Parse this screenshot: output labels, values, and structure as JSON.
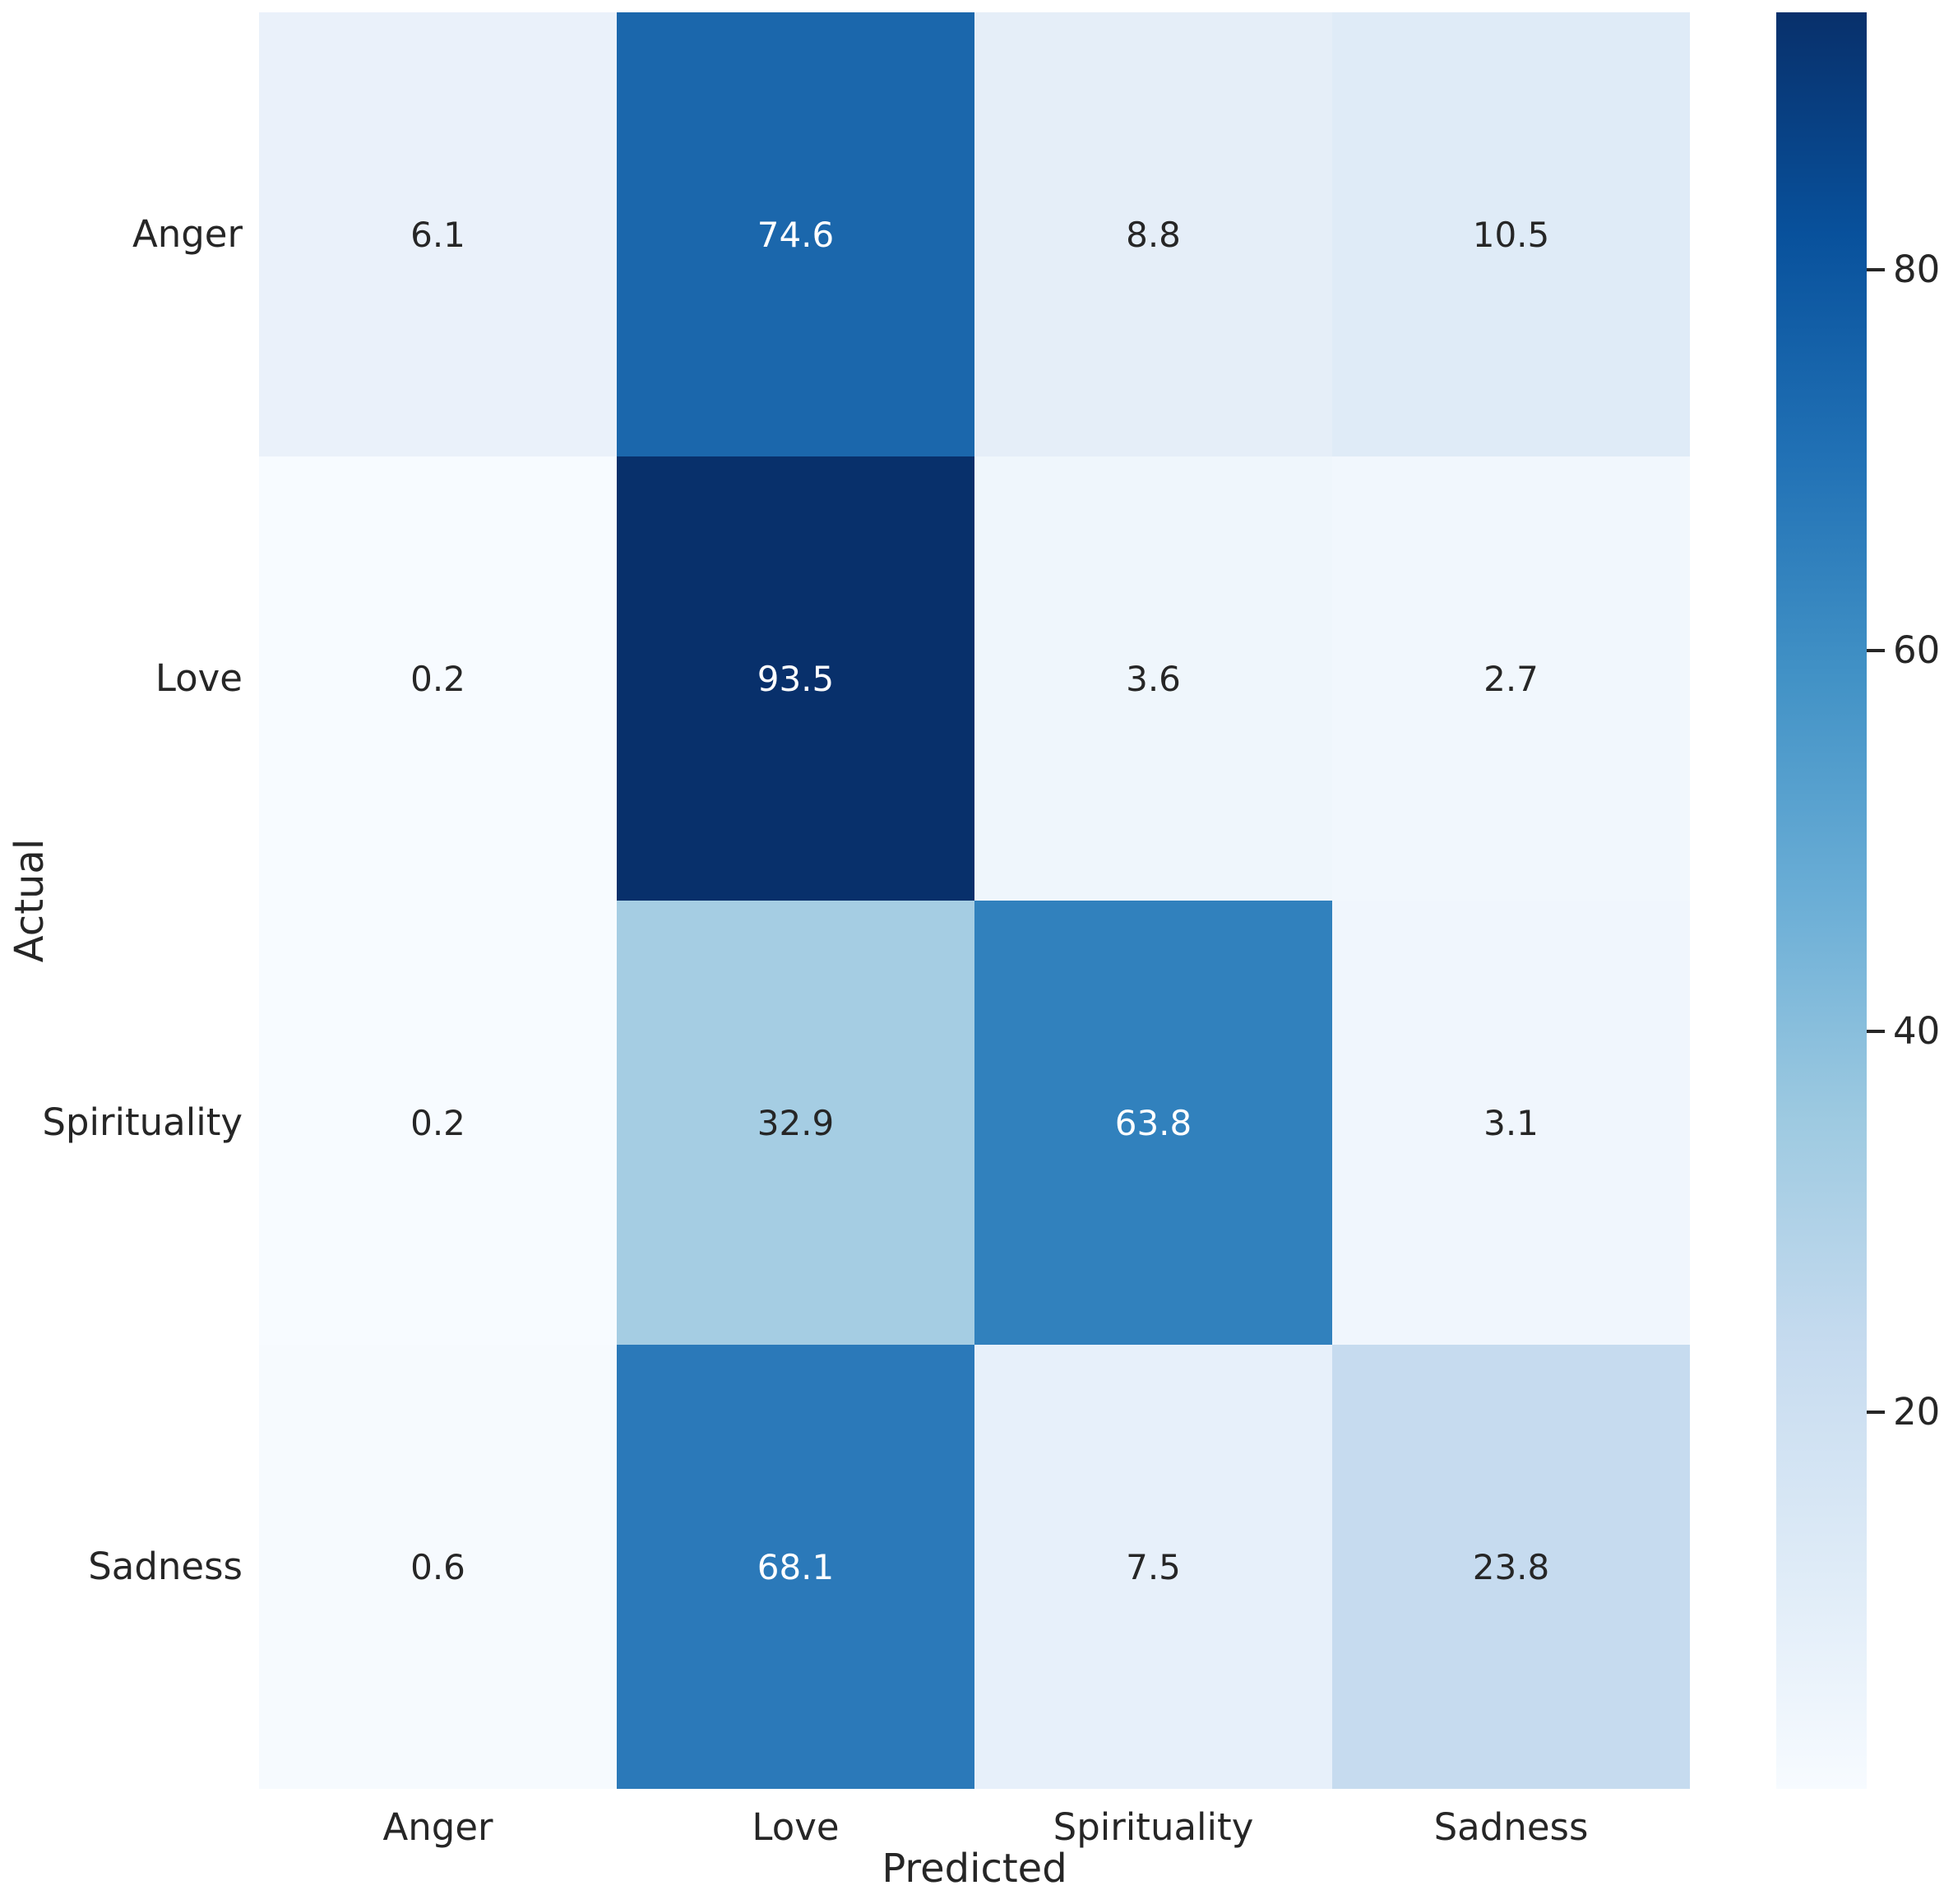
{
  "chart_data": {
    "type": "heatmap",
    "title": "",
    "xlabel": "Predicted",
    "ylabel": "Actual",
    "x_categories": [
      "Anger",
      "Love",
      "Spirituality",
      "Sadness"
    ],
    "y_categories": [
      "Anger",
      "Love",
      "Spirituality",
      "Sadness"
    ],
    "rows": [
      [
        6.1,
        74.6,
        8.8,
        10.5
      ],
      [
        0.2,
        93.5,
        3.6,
        2.7
      ],
      [
        0.2,
        32.9,
        63.8,
        3.1
      ],
      [
        0.6,
        68.1,
        7.5,
        23.8
      ]
    ],
    "cell_colors": [
      [
        "#eaf1fa",
        "#1b67ac",
        "#e5eef8",
        "#dfebf7"
      ],
      [
        "#f7fbff",
        "#08306b",
        "#eff6fc",
        "#f1f7fd"
      ],
      [
        "#f7fbff",
        "#a5cde3",
        "#3181bd",
        "#f0f6fd"
      ],
      [
        "#f6fafe",
        "#2b79b9",
        "#e7f0fa",
        "#c6dbef"
      ]
    ],
    "cell_text_colors": [
      [
        "#262626",
        "#ffffff",
        "#262626",
        "#262626"
      ],
      [
        "#262626",
        "#ffffff",
        "#262626",
        "#262626"
      ],
      [
        "#262626",
        "#a5cde3",
        "#ffffff",
        "#262626"
      ],
      [
        "#262626",
        "#ffffff",
        "#262626",
        "#262626"
      ]
    ],
    "annotation_dark_text_color": "#262626",
    "annotation_light_text_color": "#ffffff",
    "colormap": "Blues",
    "colormap_anchor_colors": [
      "#f7fbff",
      "#deebf7",
      "#c6dbef",
      "#9ecae1",
      "#6baed6",
      "#4292c6",
      "#2171b5",
      "#08519c",
      "#08306b"
    ],
    "color_range": [
      0.2,
      93.5
    ],
    "colorbar_ticks": [
      20,
      40,
      60,
      80
    ],
    "grid": false,
    "legend_position": "colorbar-right",
    "background_color": "#ffffff",
    "tick_text_color": "#262626"
  }
}
